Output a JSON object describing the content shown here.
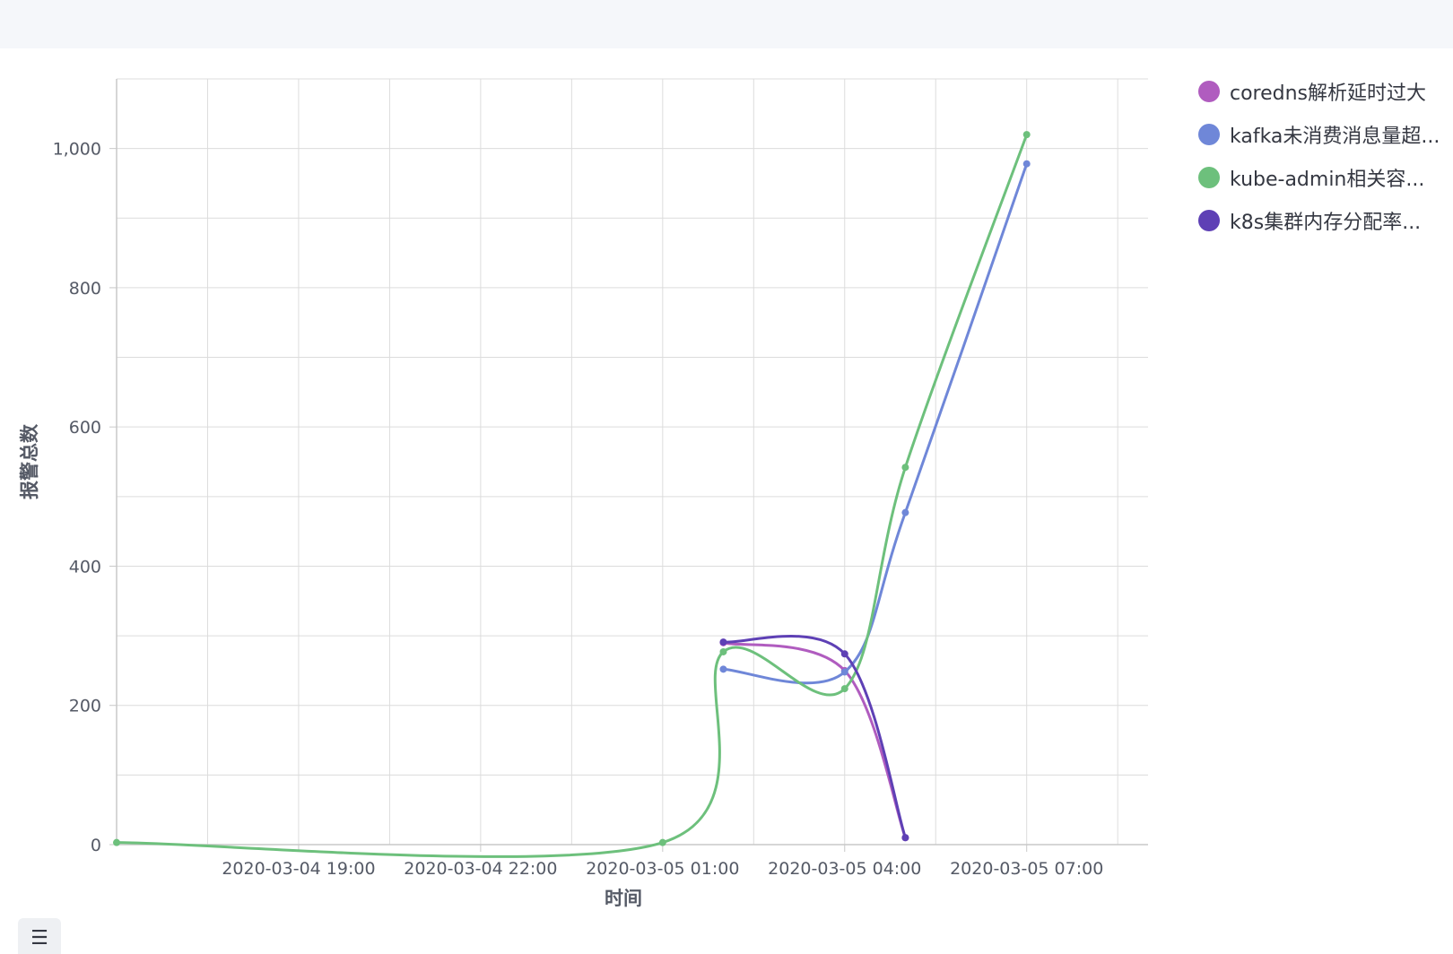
{
  "chart_data": {
    "type": "line",
    "xlabel": "时间",
    "ylabel": "报警总数",
    "ylim": [
      0,
      1100
    ],
    "y_ticks": [
      0,
      200,
      400,
      600,
      800,
      1000
    ],
    "y_tick_labels": [
      "0",
      "200",
      "400",
      "600",
      "800",
      "1,000"
    ],
    "xlim": [
      "2020-03-04 16:00",
      "2020-03-05 09:00"
    ],
    "x_ticks": [
      "2020-03-04 19:00",
      "2020-03-04 22:00",
      "2020-03-05 01:00",
      "2020-03-05 04:00",
      "2020-03-05 07:00"
    ],
    "x_tick_labels": [
      "2020-03-04 19:00",
      "2020-03-04 22:00",
      "2020-03-05 01:00",
      "2020-03-05 04:00",
      "2020-03-05 07:00"
    ],
    "grid": true,
    "legend_position": "right",
    "series": [
      {
        "name": "coredns解析延时过大",
        "color": "#b05cbf",
        "points": [
          {
            "x": "2020-03-05 02:00",
            "y": 290
          },
          {
            "x": "2020-03-05 04:00",
            "y": 250
          },
          {
            "x": "2020-03-05 05:00",
            "y": 10
          }
        ]
      },
      {
        "name": "kafka未消费消息量超...",
        "color": "#6f87d8",
        "points": [
          {
            "x": "2020-03-05 02:00",
            "y": 252
          },
          {
            "x": "2020-03-05 04:00",
            "y": 248
          },
          {
            "x": "2020-03-05 05:00",
            "y": 477
          },
          {
            "x": "2020-03-05 07:00",
            "y": 978
          }
        ]
      },
      {
        "name": "kube-admin相关容...",
        "color": "#6dc07c",
        "points": [
          {
            "x": "2020-03-04 16:00",
            "y": 3
          },
          {
            "x": "2020-03-05 01:00",
            "y": 3
          },
          {
            "x": "2020-03-05 02:00",
            "y": 277
          },
          {
            "x": "2020-03-05 04:00",
            "y": 224
          },
          {
            "x": "2020-03-05 05:00",
            "y": 542
          },
          {
            "x": "2020-03-05 07:00",
            "y": 1020
          }
        ]
      },
      {
        "name": "k8s集群内存分配率...",
        "color": "#5e40b5",
        "points": [
          {
            "x": "2020-03-05 02:00",
            "y": 291
          },
          {
            "x": "2020-03-05 04:00",
            "y": 274
          },
          {
            "x": "2020-03-05 05:00",
            "y": 10
          }
        ]
      }
    ]
  },
  "legend_toggle_icon": "list-icon",
  "legend_toggle_glyph": "☰"
}
